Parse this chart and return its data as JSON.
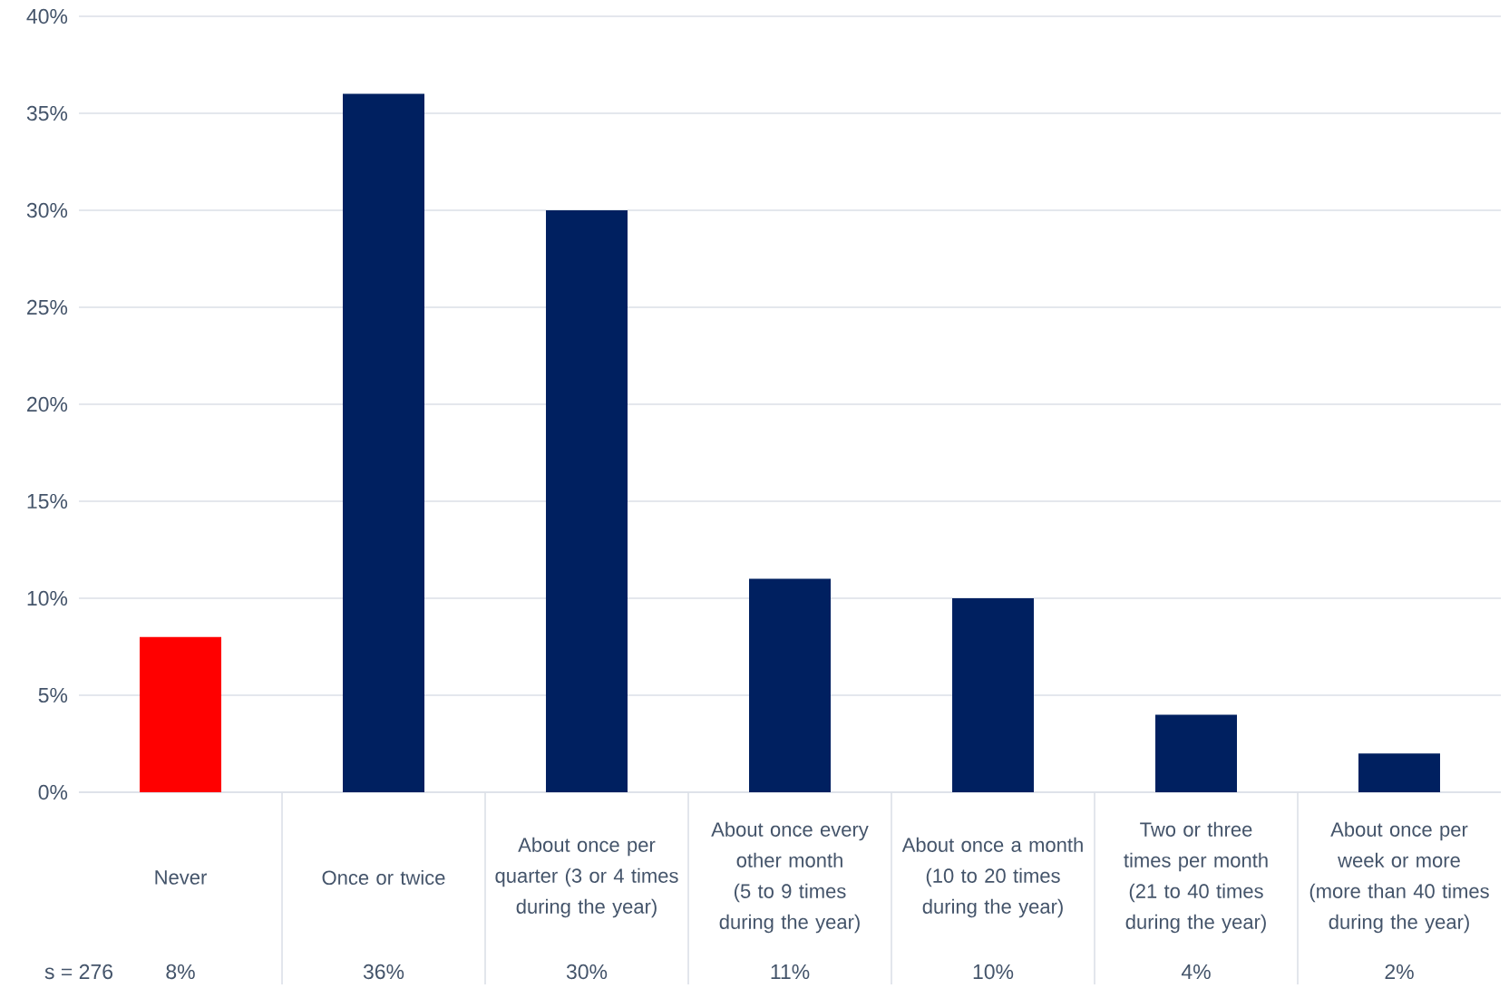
{
  "chart_data": {
    "type": "bar",
    "categories": [
      "Never",
      "Once or twice",
      "About once per quarter (3 or 4 times during the year)",
      "About once every other month (5 to 9 times during the year)",
      "About once a month (10 to 20 times during the year)",
      "Two or three times per month (21 to 40 times during the year)",
      "About once per week or more (more than 40 times during the year)"
    ],
    "values": [
      8,
      36,
      30,
      11,
      10,
      4,
      2
    ],
    "value_labels": [
      "8%",
      "36%",
      "30%",
      "11%",
      "10%",
      "4%",
      "2%"
    ],
    "colors": [
      "#ff0000",
      "#002060",
      "#002060",
      "#002060",
      "#002060",
      "#002060",
      "#002060"
    ],
    "ylim": [
      0,
      40
    ],
    "yticks": [
      {
        "value": 0,
        "label": "0%"
      },
      {
        "value": 5,
        "label": "5%"
      },
      {
        "value": 10,
        "label": "10%"
      },
      {
        "value": 15,
        "label": "15%"
      },
      {
        "value": 20,
        "label": "20%"
      },
      {
        "value": 25,
        "label": "25%"
      },
      {
        "value": 30,
        "label": "30%"
      },
      {
        "value": 35,
        "label": "35%"
      },
      {
        "value": 40,
        "label": "40%"
      }
    ],
    "grid": "y",
    "annotations": [
      "s = 276"
    ]
  }
}
